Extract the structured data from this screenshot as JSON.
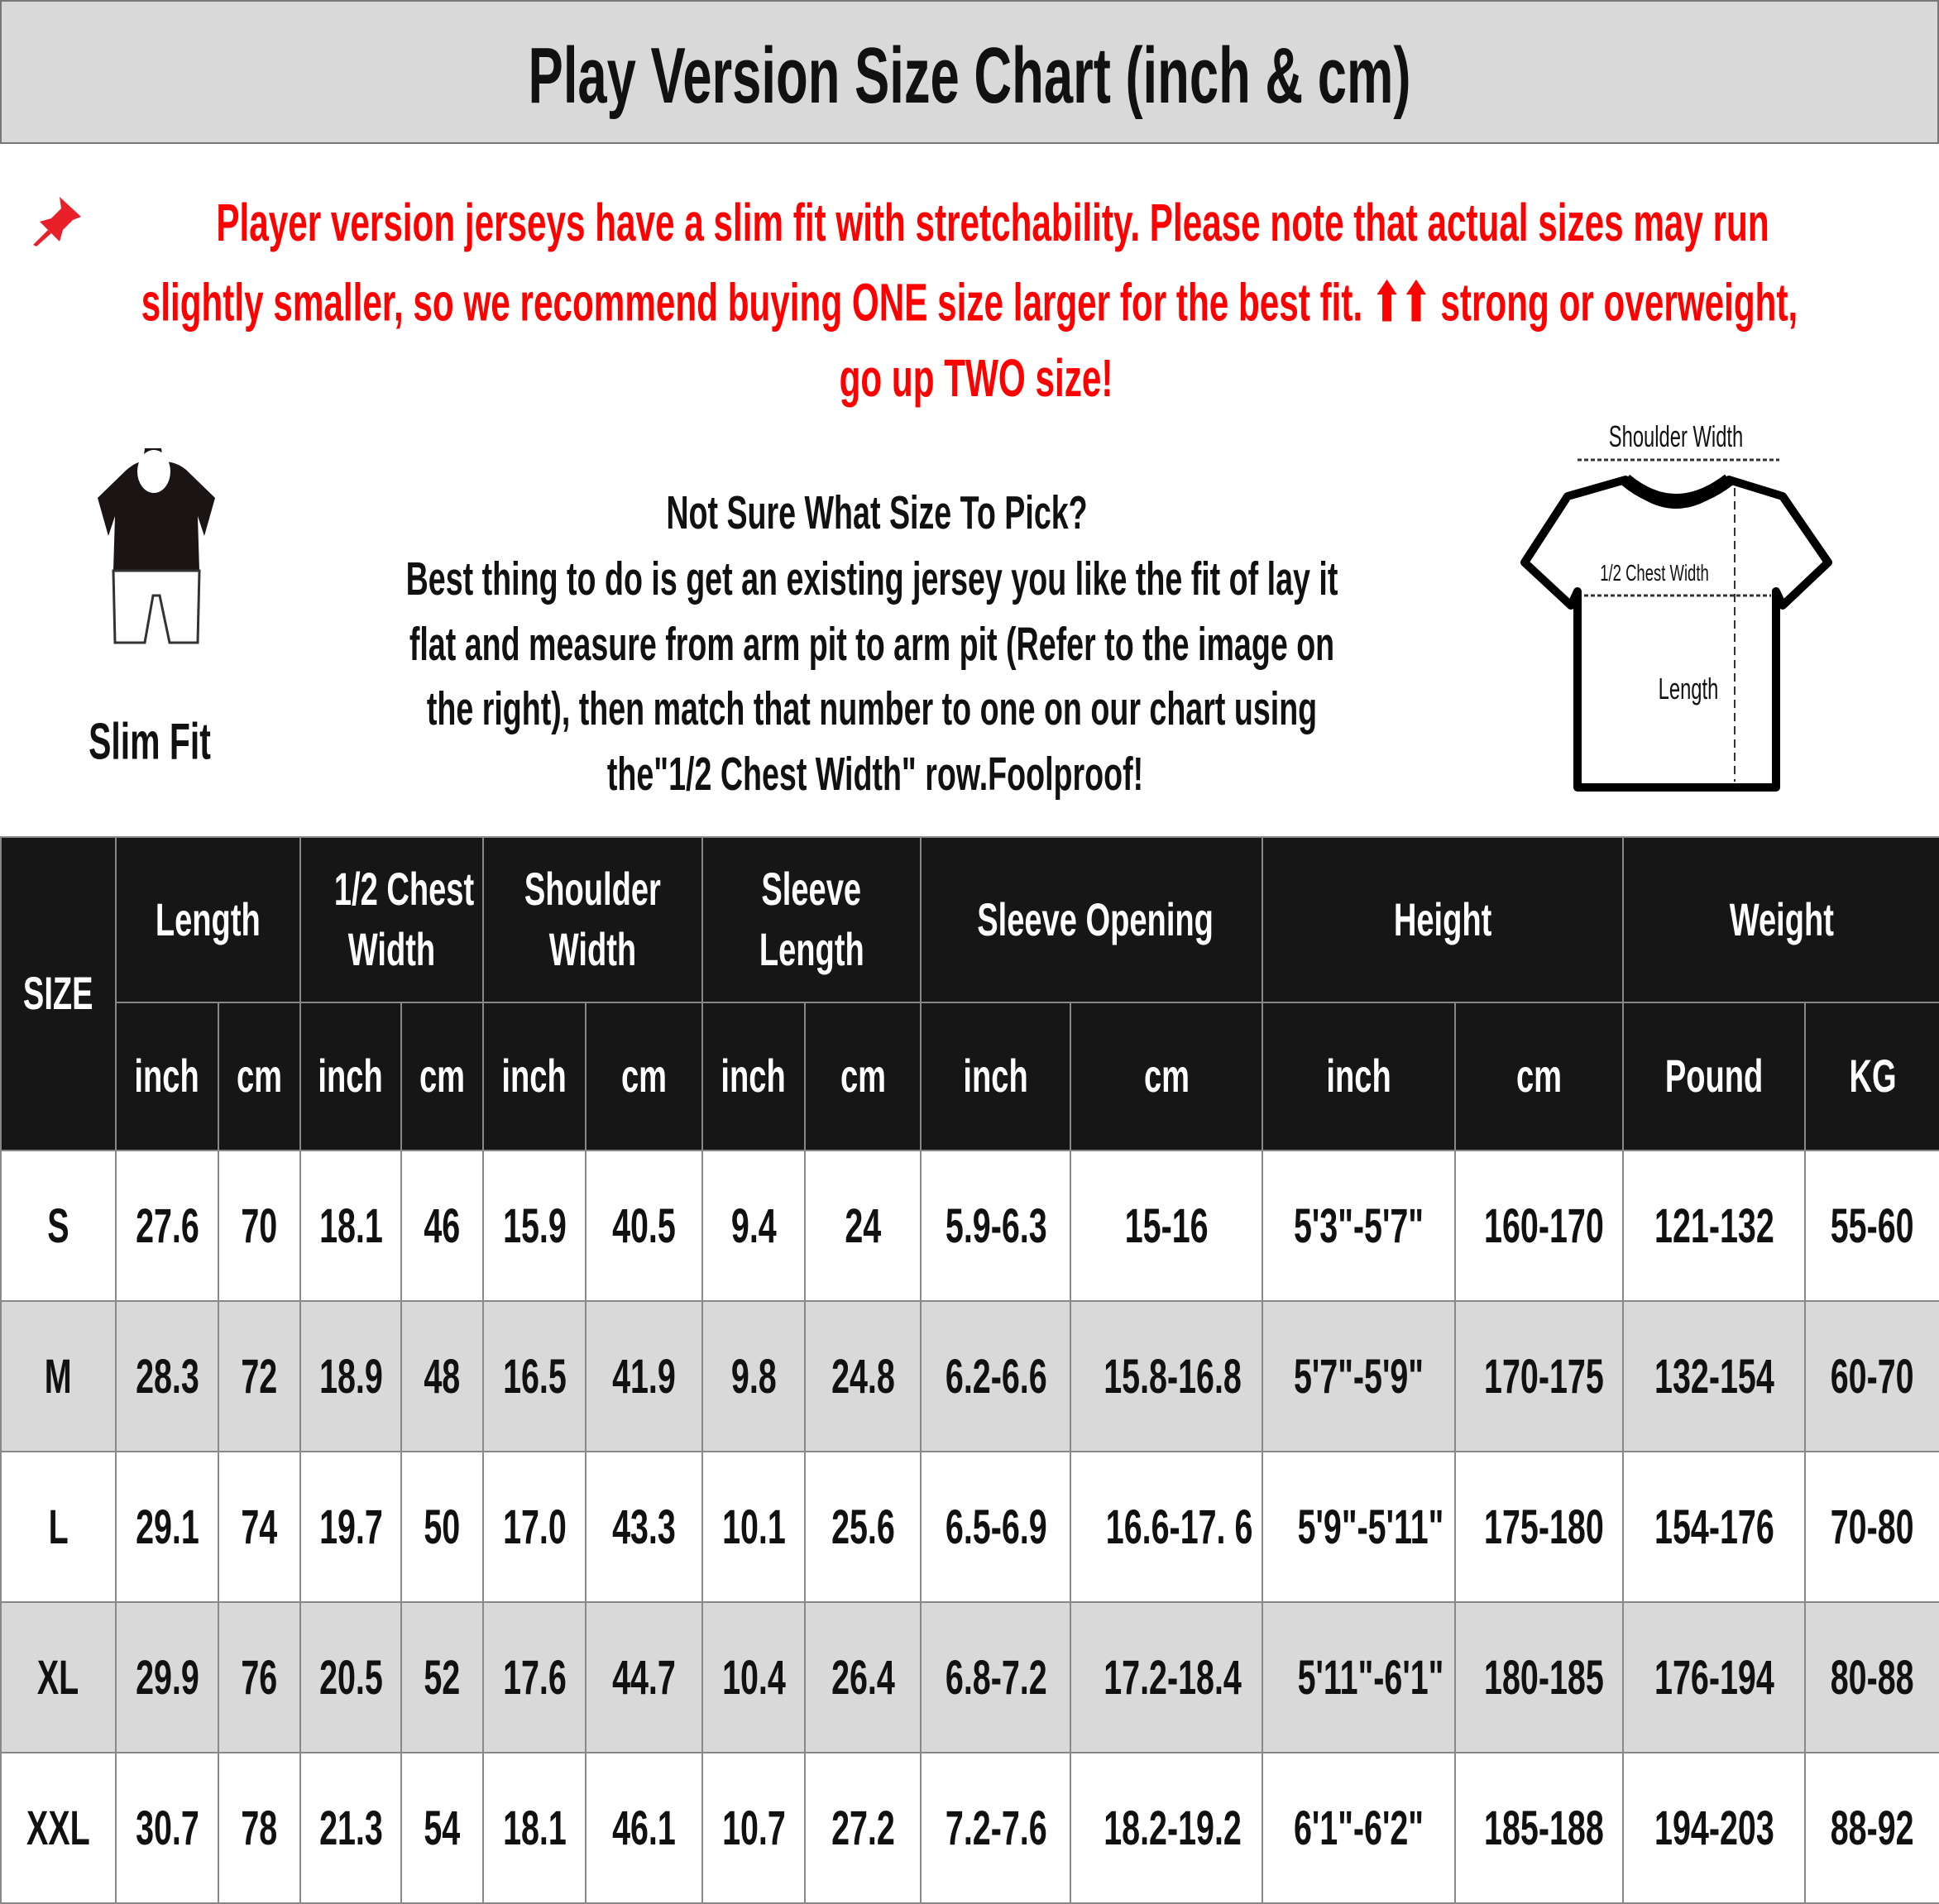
{
  "title": "Play Version Size Chart (inch & cm)",
  "notice": {
    "icon": "pushpin-icon",
    "color": "#ff0000",
    "lines": [
      "Player version jerseys have a slim fit with stretchability. Please note that actual sizes may run",
      "slightly smaller, so we recommend buying ONE size larger for the best fit. ⬆⬆ strong or overweight,",
      "go up TWO size!"
    ]
  },
  "fit_label": "Slim Fit",
  "guide": {
    "heading": "Not Sure What Size To Pick?",
    "lines": [
      "Best thing to do is get an existing jersey you like the fit of lay it",
      "flat and measure from arm pit to arm pit (Refer to the image on",
      "the right), then match that number to one on our chart using",
      "the\"1/2 Chest Width\" row.Foolproof!"
    ]
  },
  "diagram": {
    "shoulder": "Shoulder Width",
    "chest": "1/2 Chest Width",
    "length": "Length"
  },
  "table": {
    "size_header": "SIZE",
    "groups": [
      "Length",
      "1/2 Chest Width",
      "Shoulder Width",
      "Sleeve Length",
      "Sleeve Opening",
      "Height",
      "Weight"
    ],
    "group_lines": [
      [
        "Length"
      ],
      [
        "1/2 Chest",
        "Width"
      ],
      [
        "Shoulder",
        "Width"
      ],
      [
        "Sleeve",
        "Length"
      ],
      [
        "Sleeve Opening"
      ],
      [
        "Height"
      ],
      [
        "Weight"
      ]
    ],
    "units": [
      "inch",
      "cm",
      "inch",
      "cm",
      "inch",
      "cm",
      "inch",
      "cm",
      "inch",
      "cm",
      "inch",
      "cm",
      "Pound",
      "KG"
    ],
    "rows": [
      [
        "S",
        "27.6",
        "70",
        "18.1",
        "46",
        "15.9",
        "40.5",
        "9.4",
        "24",
        "5.9-6.3",
        "15-16",
        "5'3\"-5'7\"",
        "160-170",
        "121-132",
        "55-60"
      ],
      [
        "M",
        "28.3",
        "72",
        "18.9",
        "48",
        "16.5",
        "41.9",
        "9.8",
        "24.8",
        "6.2-6.6",
        "15.8-16.8",
        "5'7\"-5'9\"",
        "170-175",
        "132-154",
        "60-70"
      ],
      [
        "L",
        "29.1",
        "74",
        "19.7",
        "50",
        "17.0",
        "43.3",
        "10.1",
        "25.6",
        "6.5-6.9",
        "16.6-17. 6",
        "5'9\"-5'11\"",
        "175-180",
        "154-176",
        "70-80"
      ],
      [
        "XL",
        "29.9",
        "76",
        "20.5",
        "52",
        "17.6",
        "44.7",
        "10.4",
        "26.4",
        "6.8-7.2",
        "17.2-18.4",
        "5'11\"-6'1\"",
        "180-185",
        "176-194",
        "80-88"
      ],
      [
        "XXL",
        "30.7",
        "78",
        "21.3",
        "54",
        "18.1",
        "46.1",
        "10.7",
        "27.2",
        "7.2-7.6",
        "18.2-19.2",
        "6'1\"-6'2\"",
        "185-188",
        "194-203",
        "88-92"
      ]
    ]
  }
}
